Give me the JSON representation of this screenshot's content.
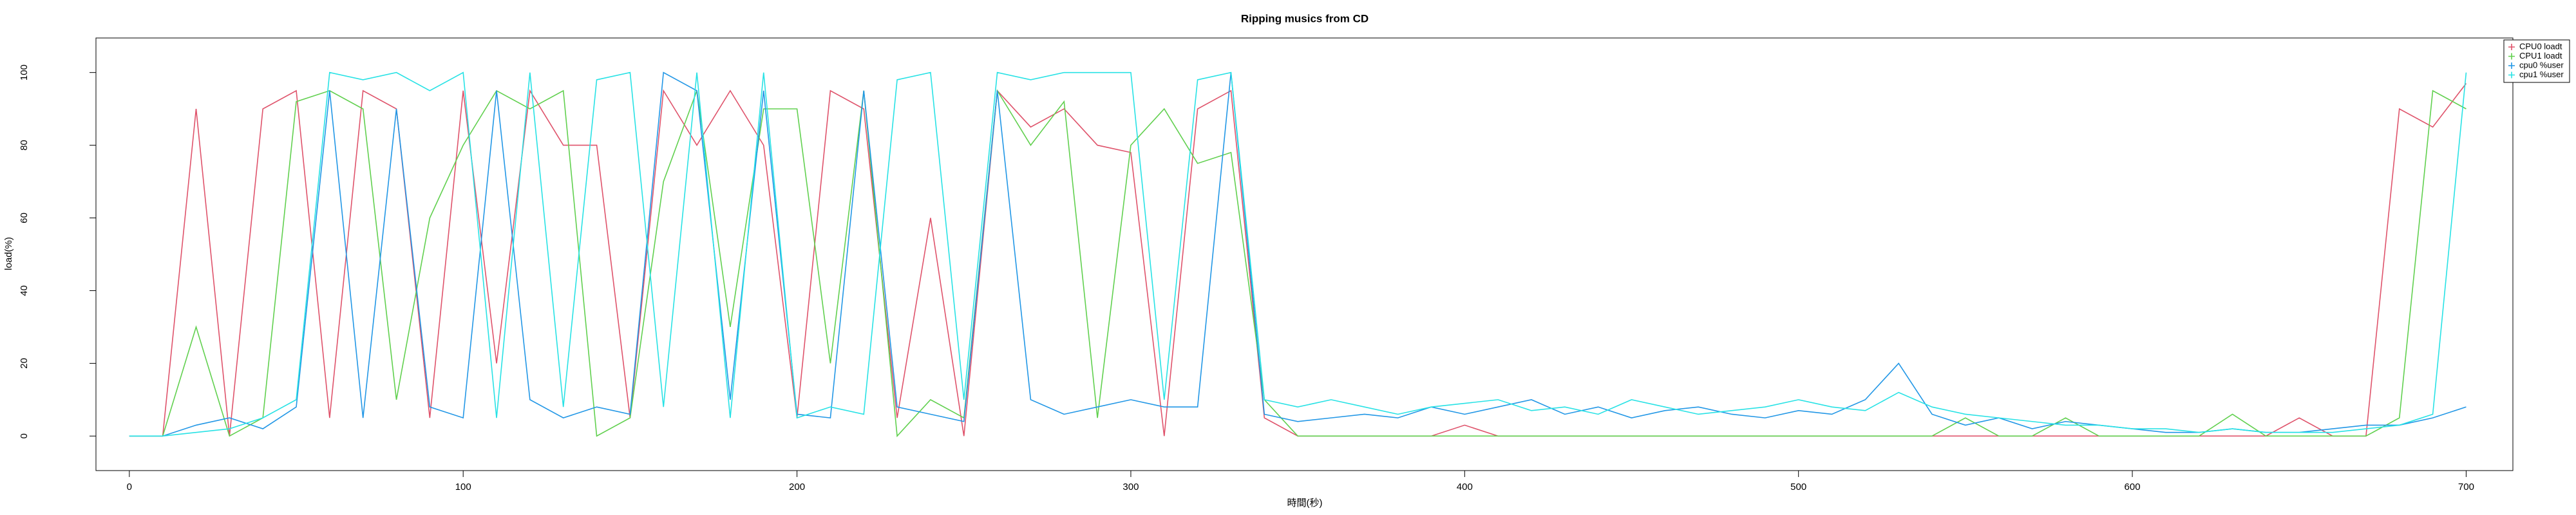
{
  "chart_data": {
    "type": "line",
    "title": "Ripping musics from CD",
    "x_label": "時間(秒)",
    "y_label": "load(%)",
    "x": [
      0,
      10,
      20,
      30,
      40,
      50,
      60,
      70,
      80,
      90,
      100,
      110,
      120,
      130,
      140,
      150,
      160,
      170,
      180,
      190,
      200,
      210,
      220,
      230,
      240,
      250,
      260,
      270,
      280,
      290,
      300,
      310,
      320,
      330,
      340,
      350,
      360,
      370,
      380,
      390,
      400,
      410,
      420,
      430,
      440,
      450,
      460,
      470,
      480,
      490,
      500,
      510,
      520,
      530,
      540,
      550,
      560,
      570,
      580,
      590,
      600,
      610,
      620,
      630,
      640,
      650,
      660,
      670,
      680,
      690,
      700
    ],
    "series": [
      {
        "name": "CPU0 loadt",
        "color": "#DF536B",
        "values": [
          0,
          0,
          90,
          0,
          90,
          95,
          5,
          95,
          90,
          5,
          95,
          20,
          95,
          80,
          80,
          5,
          95,
          80,
          95,
          80,
          5,
          95,
          90,
          5,
          60,
          0,
          95,
          85,
          90,
          80,
          78,
          0,
          90,
          95,
          5,
          0,
          0,
          0,
          0,
          0,
          3,
          0,
          0,
          0,
          0,
          0,
          0,
          0,
          0,
          0,
          0,
          0,
          0,
          0,
          0,
          0,
          0,
          0,
          0,
          0,
          0,
          0,
          0,
          0,
          0,
          5,
          0,
          0,
          90,
          85,
          97
        ]
      },
      {
        "name": "CPU1 loadt",
        "color": "#61D04F",
        "values": [
          0,
          0,
          30,
          0,
          5,
          92,
          95,
          90,
          10,
          60,
          80,
          95,
          90,
          95,
          0,
          5,
          70,
          95,
          30,
          90,
          90,
          20,
          95,
          0,
          10,
          5,
          95,
          80,
          92,
          5,
          80,
          90,
          75,
          78,
          10,
          0,
          0,
          0,
          0,
          0,
          0,
          0,
          0,
          0,
          0,
          0,
          0,
          0,
          0,
          0,
          0,
          0,
          0,
          0,
          0,
          5,
          0,
          0,
          5,
          0,
          0,
          0,
          0,
          6,
          0,
          0,
          0,
          0,
          5,
          95,
          90
        ]
      },
      {
        "name": "cpu0 %user",
        "color": "#2297E6",
        "values": [
          0,
          0,
          3,
          5,
          2,
          8,
          95,
          5,
          90,
          8,
          5,
          95,
          10,
          5,
          8,
          6,
          100,
          95,
          10,
          95,
          6,
          5,
          95,
          8,
          6,
          4,
          95,
          10,
          6,
          8,
          10,
          8,
          8,
          100,
          6,
          4,
          5,
          6,
          5,
          8,
          6,
          8,
          10,
          6,
          8,
          5,
          7,
          8,
          6,
          5,
          7,
          6,
          10,
          20,
          6,
          3,
          5,
          2,
          4,
          3,
          2,
          1,
          1,
          2,
          1,
          1,
          2,
          3,
          3,
          5,
          8
        ]
      },
      {
        "name": "cpu1 %user",
        "color": "#28E2E5",
        "values": [
          0,
          0,
          1,
          2,
          5,
          10,
          100,
          98,
          100,
          95,
          100,
          5,
          100,
          8,
          98,
          100,
          8,
          100,
          5,
          100,
          5,
          8,
          6,
          98,
          100,
          10,
          100,
          98,
          100,
          100,
          100,
          10,
          98,
          100,
          10,
          8,
          10,
          8,
          6,
          8,
          9,
          10,
          7,
          8,
          6,
          10,
          8,
          6,
          7,
          8,
          10,
          8,
          7,
          12,
          8,
          6,
          5,
          4,
          3,
          3,
          2,
          2,
          1,
          2,
          1,
          1,
          1,
          2,
          3,
          6,
          100
        ]
      }
    ],
    "xlim": [
      -10,
      714
    ],
    "xticks": [
      0,
      100,
      200,
      300,
      400,
      500,
      600,
      700
    ],
    "ylim": [
      -9.5,
      109.5
    ],
    "yticks": [
      0,
      20,
      40,
      60,
      80,
      100
    ],
    "legend_position": "top-right"
  }
}
